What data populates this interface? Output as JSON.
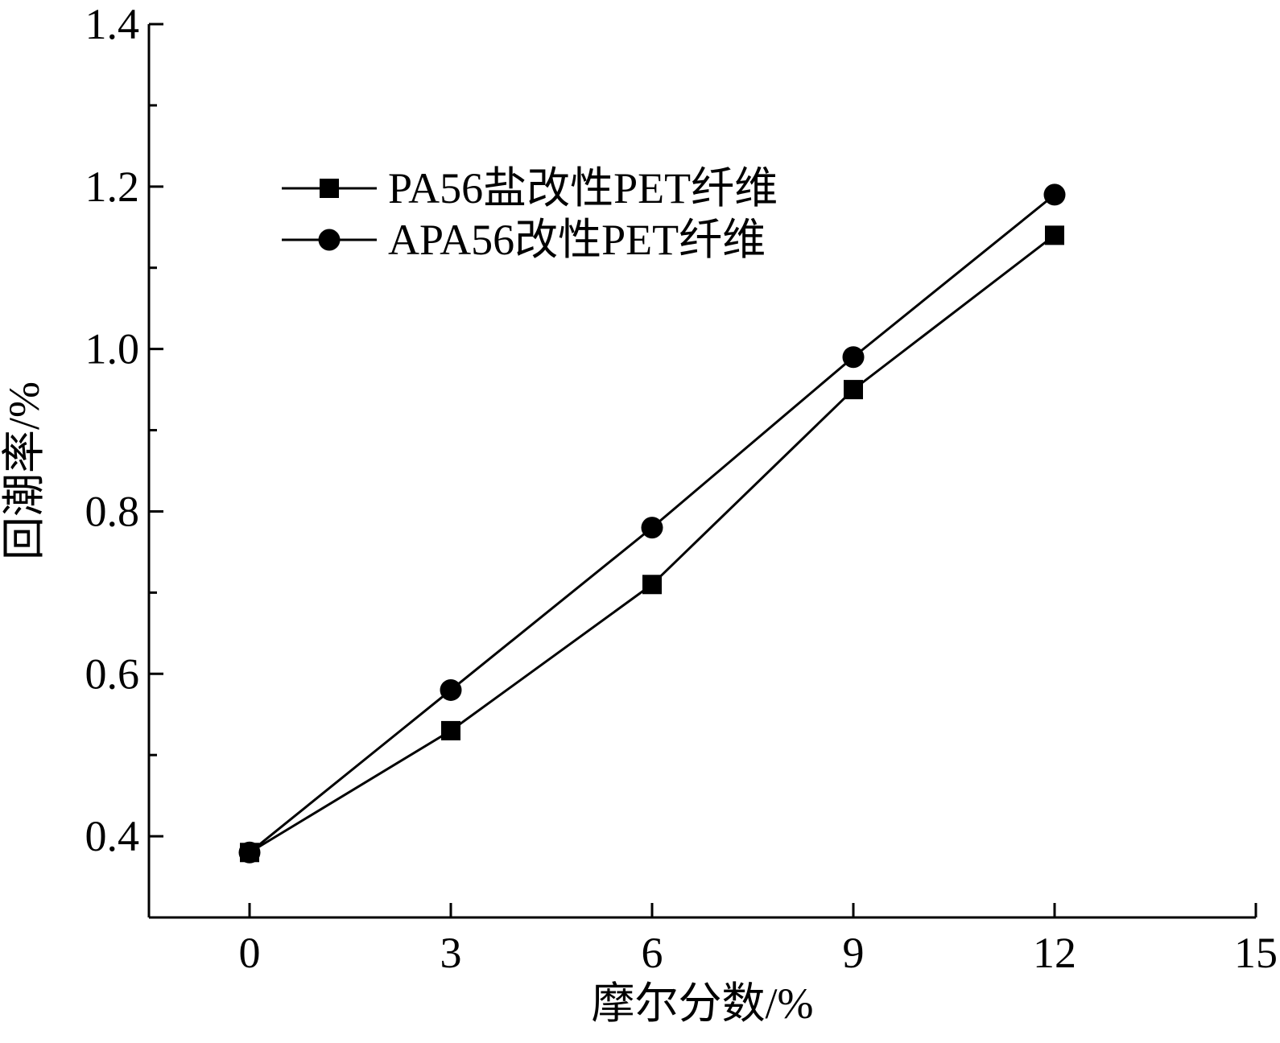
{
  "chart_data": {
    "type": "line",
    "xlabel": "摩尔分数/%",
    "ylabel": "回潮率/%",
    "xlim": [
      -1.5,
      15
    ],
    "ylim": [
      0.3,
      1.4
    ],
    "xticks": [
      0,
      3,
      6,
      9,
      12,
      15
    ],
    "xtick_labels": [
      "0",
      "3",
      "6",
      "9",
      "12",
      "15"
    ],
    "yticks": [
      0.4,
      0.6,
      0.8,
      1.0,
      1.2,
      1.4
    ],
    "ytick_labels": [
      "0.4",
      "0.6",
      "0.8",
      "1.0",
      "1.2",
      "1.4"
    ],
    "y_minor_step": 0.1,
    "grid": false,
    "legend_position": "top-left",
    "x": [
      0,
      3,
      6,
      9,
      12
    ],
    "series": [
      {
        "name": "PA56盐改性PET纤维",
        "marker": "square",
        "values": [
          0.38,
          0.53,
          0.71,
          0.95,
          1.14
        ],
        "color": "#000000"
      },
      {
        "name": "APA56改性PET纤维",
        "marker": "circle",
        "values": [
          0.38,
          0.58,
          0.78,
          0.99,
          1.19
        ],
        "color": "#000000"
      }
    ]
  }
}
